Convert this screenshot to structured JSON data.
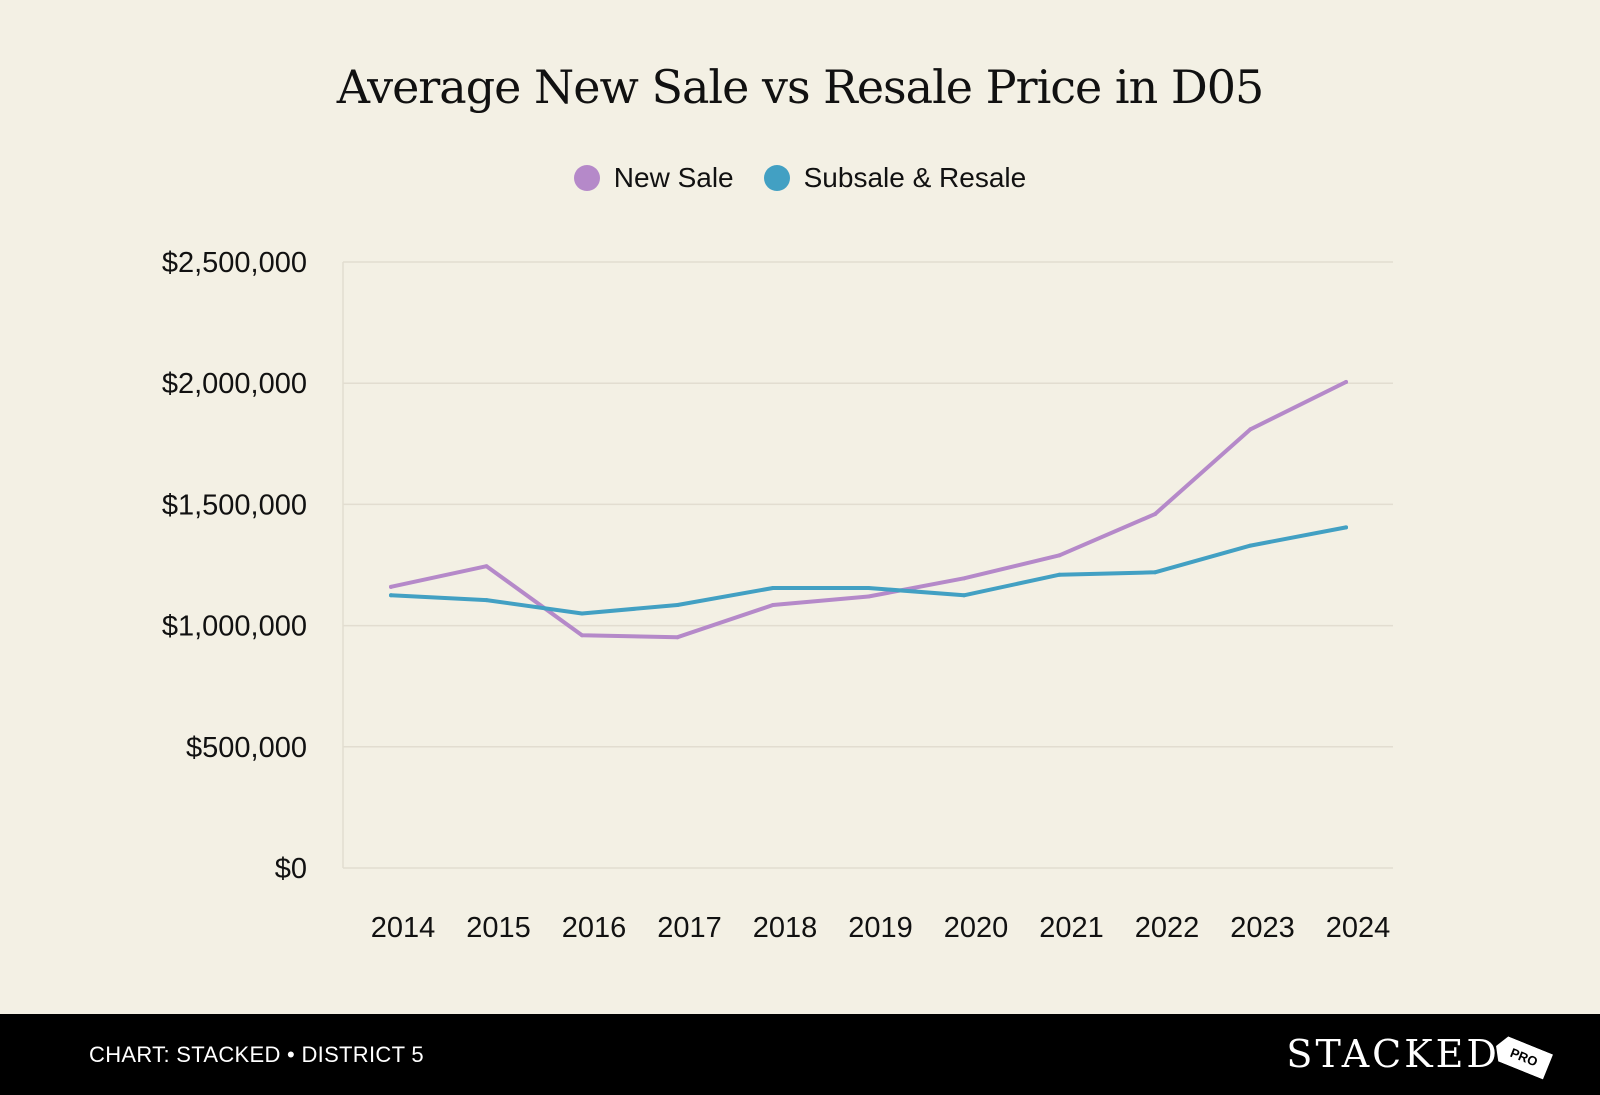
{
  "chart_data": {
    "type": "line",
    "title": "Average New Sale vs Resale Price in D05",
    "xlabel": "",
    "ylabel": "",
    "categories": [
      "2014",
      "2015",
      "2016",
      "2017",
      "2018",
      "2019",
      "2020",
      "2021",
      "2022",
      "2023",
      "2024"
    ],
    "series": [
      {
        "name": "New Sale",
        "color": "#b589c9",
        "values": [
          1160000,
          1245000,
          960000,
          952000,
          1085000,
          1120000,
          1195000,
          1290000,
          1460000,
          1810000,
          2005000
        ]
      },
      {
        "name": "Subsale & Resale",
        "color": "#42a0c3",
        "values": [
          1125000,
          1105000,
          1050000,
          1085000,
          1155000,
          1155000,
          1125000,
          1210000,
          1220000,
          1330000,
          1405000
        ]
      }
    ],
    "ylim": [
      0,
      2500000
    ],
    "y_ticks": [
      0,
      500000,
      1000000,
      1500000,
      2000000,
      2500000
    ],
    "y_tick_labels": [
      "$0",
      "$500,000",
      "$1,000,000",
      "$1,500,000",
      "$2,000,000",
      "$2,500,000"
    ],
    "grid": true,
    "legend_position": "top-center"
  },
  "footer": {
    "caption": "CHART: STACKED • DISTRICT 5",
    "brand": "STACKED",
    "brand_tag": "PRO"
  }
}
